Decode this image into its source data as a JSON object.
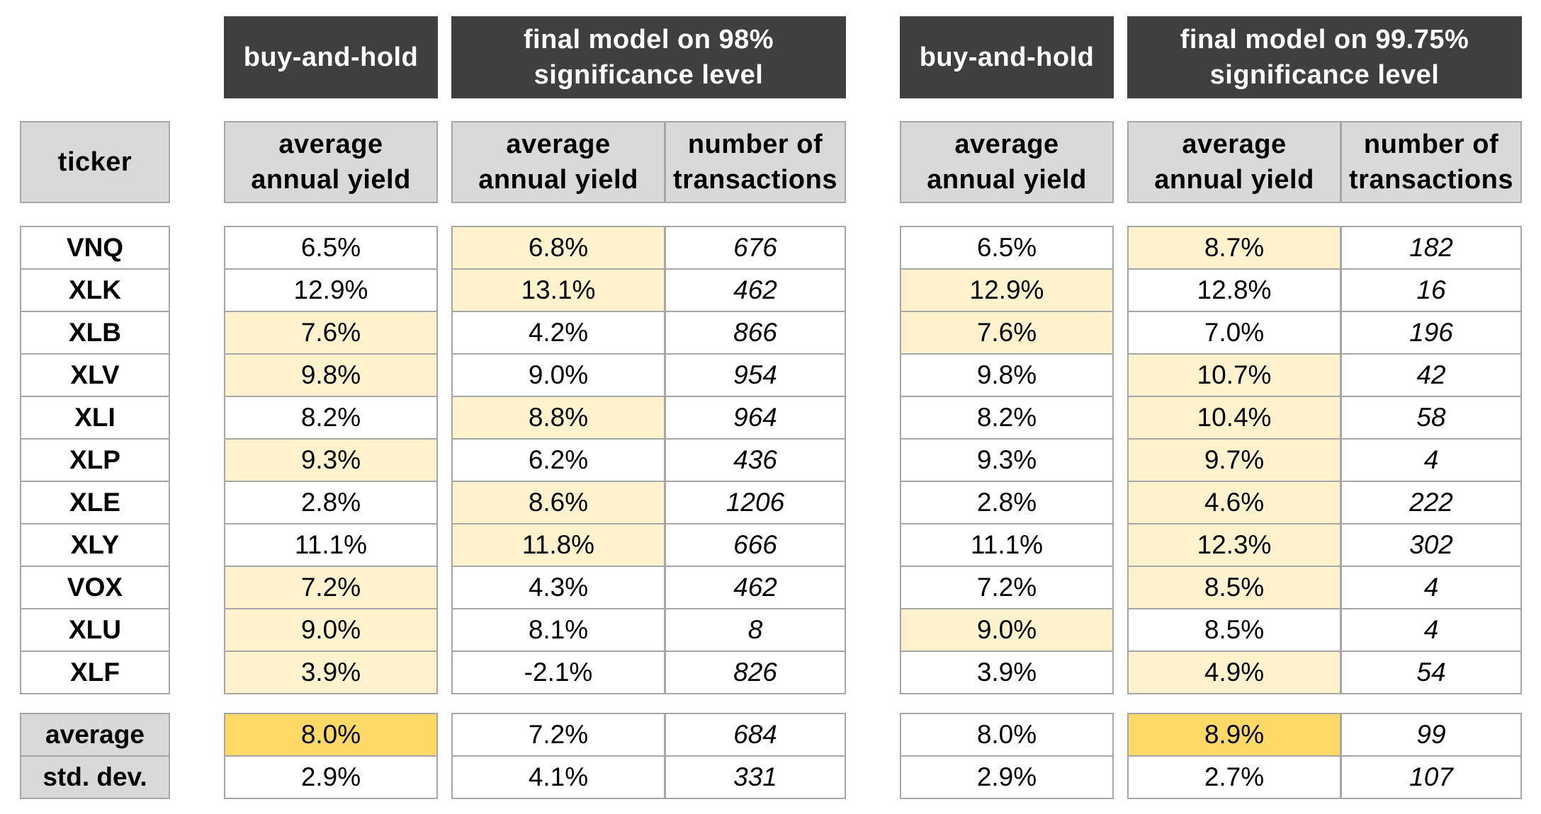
{
  "chart_data": {
    "type": "table",
    "group_headers": [
      "buy-and-hold",
      "final model on 98% significance level",
      "buy-and-hold",
      "final model on 99.75% significance level"
    ],
    "group_headers_lines": [
      [
        "buy-and-hold"
      ],
      [
        "final model on 98%",
        "significance level"
      ],
      [
        "buy-and-hold"
      ],
      [
        "final model on 99.75%",
        "significance level"
      ]
    ],
    "column_headers": {
      "ticker": "ticker",
      "yield": [
        "average",
        "annual yield"
      ],
      "transactions": [
        "number of",
        "transactions"
      ]
    },
    "columns": [
      "ticker",
      "buy-and-hold average annual yield",
      "final model 98% average annual yield",
      "final model 98% number of transactions",
      "buy-and-hold average annual yield",
      "final model 99.75% average annual yield",
      "final model 99.75% number of transactions"
    ],
    "rows": [
      {
        "ticker": "VNQ",
        "values": [
          "6.5%",
          "6.8%",
          "676",
          "6.5%",
          "8.7%",
          "182"
        ],
        "highlight": [
          0,
          1,
          0,
          0,
          1,
          0
        ]
      },
      {
        "ticker": "XLK",
        "values": [
          "12.9%",
          "13.1%",
          "462",
          "12.9%",
          "12.8%",
          "16"
        ],
        "highlight": [
          0,
          1,
          0,
          1,
          0,
          0
        ]
      },
      {
        "ticker": "XLB",
        "values": [
          "7.6%",
          "4.2%",
          "866",
          "7.6%",
          "7.0%",
          "196"
        ],
        "highlight": [
          1,
          0,
          0,
          1,
          0,
          0
        ]
      },
      {
        "ticker": "XLV",
        "values": [
          "9.8%",
          "9.0%",
          "954",
          "9.8%",
          "10.7%",
          "42"
        ],
        "highlight": [
          1,
          0,
          0,
          0,
          1,
          0
        ]
      },
      {
        "ticker": "XLI",
        "values": [
          "8.2%",
          "8.8%",
          "964",
          "8.2%",
          "10.4%",
          "58"
        ],
        "highlight": [
          0,
          1,
          0,
          0,
          1,
          0
        ]
      },
      {
        "ticker": "XLP",
        "values": [
          "9.3%",
          "6.2%",
          "436",
          "9.3%",
          "9.7%",
          "4"
        ],
        "highlight": [
          1,
          0,
          0,
          0,
          1,
          0
        ]
      },
      {
        "ticker": "XLE",
        "values": [
          "2.8%",
          "8.6%",
          "1206",
          "2.8%",
          "4.6%",
          "222"
        ],
        "highlight": [
          0,
          1,
          0,
          0,
          1,
          0
        ]
      },
      {
        "ticker": "XLY",
        "values": [
          "11.1%",
          "11.8%",
          "666",
          "11.1%",
          "12.3%",
          "302"
        ],
        "highlight": [
          0,
          1,
          0,
          0,
          1,
          0
        ]
      },
      {
        "ticker": "VOX",
        "values": [
          "7.2%",
          "4.3%",
          "462",
          "7.2%",
          "8.5%",
          "4"
        ],
        "highlight": [
          1,
          0,
          0,
          0,
          1,
          0
        ]
      },
      {
        "ticker": "XLU",
        "values": [
          "9.0%",
          "8.1%",
          "8",
          "9.0%",
          "8.5%",
          "4"
        ],
        "highlight": [
          1,
          0,
          0,
          1,
          0,
          0
        ]
      },
      {
        "ticker": "XLF",
        "values": [
          "3.9%",
          "-2.1%",
          "826",
          "3.9%",
          "4.9%",
          "54"
        ],
        "highlight": [
          1,
          0,
          0,
          0,
          1,
          0
        ]
      }
    ],
    "summary": [
      {
        "label": "average",
        "values": [
          "8.0%",
          "7.2%",
          "684",
          "8.0%",
          "8.9%",
          "99"
        ],
        "highlight": [
          2,
          0,
          0,
          0,
          2,
          0
        ]
      },
      {
        "label": "std. dev.",
        "values": [
          "2.9%",
          "4.1%",
          "331",
          "2.9%",
          "2.7%",
          "107"
        ],
        "highlight": [
          0,
          0,
          0,
          0,
          0,
          0
        ]
      }
    ]
  },
  "colors": {
    "header_dark": "#3f3f3f",
    "header_grey": "#d9d9d9",
    "border": "#a6a6a6",
    "highlight_light": "#fff2cc",
    "highlight_strong": "#ffd966"
  }
}
